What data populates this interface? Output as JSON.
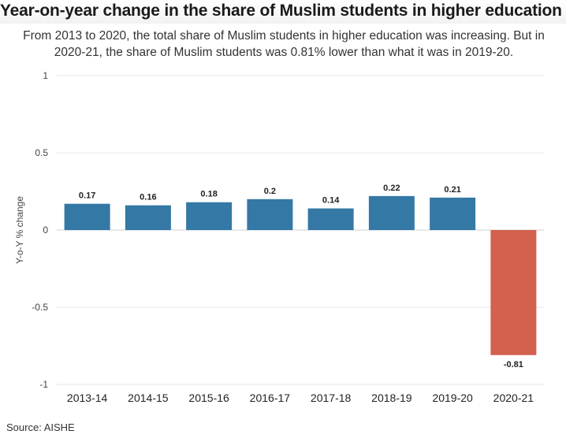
{
  "title": "Year-on-year change in the share of Muslim students in higher education",
  "subtitle": "From 2013 to 2020, the total share of Muslim students in higher education was increasing. But in 2020-21, the share of Muslim students was 0.81% lower than what it was in 2019-20.",
  "source": "Source: AISHE",
  "colors": {
    "positive": "#3478a5",
    "negative": "#d3614e",
    "grid": "#e6e6e6",
    "zero": "#d0d0d0"
  },
  "chart_data": {
    "type": "bar",
    "title": "Year-on-year change in the share of Muslim students in higher education",
    "xlabel": "",
    "ylabel": "Y-o-Y % change",
    "ylim": [
      -1,
      1
    ],
    "yticks": [
      1,
      0.5,
      0,
      -0.5,
      -1
    ],
    "ytick_labels": [
      "1",
      "0.5",
      "0",
      "-0.5",
      "-1"
    ],
    "grid": true,
    "categories": [
      "2013-14",
      "2014-15",
      "2015-16",
      "2016-17",
      "2017-18",
      "2018-19",
      "2019-20",
      "2020-21"
    ],
    "values": [
      0.17,
      0.16,
      0.18,
      0.2,
      0.14,
      0.22,
      0.21,
      -0.81
    ],
    "value_labels": [
      "0.17",
      "0.16",
      "0.18",
      "0.2",
      "0.14",
      "0.22",
      "0.21",
      "-0.81"
    ]
  }
}
